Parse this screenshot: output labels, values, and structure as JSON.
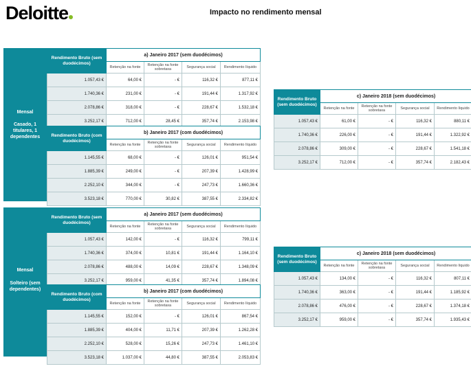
{
  "logo": "Deloitte",
  "page_title": "Impacto no rendimento mensal",
  "col_headers": [
    "Retenção na fonte",
    "Retenção na fonte sobretaxa",
    "Segurança social",
    "Rendimento líquido"
  ],
  "sections": [
    {
      "side_label": "Mensal",
      "side_sublabel": "Casado, 1 titulares, 1 dependentes",
      "tables": [
        {
          "rb_label": "Rendimento Bruto (sem duodécimos)",
          "period": "a) Janeiro 2017 (sem duodécimos)",
          "rows": [
            [
              "1.057,43 €",
              "64,00 €",
              "-   €",
              "116,32 €",
              "877,11 €"
            ],
            [
              "1.740,36 €",
              "231,00 €",
              "-   €",
              "191,44 €",
              "1.317,92 €"
            ],
            [
              "2.078,86 €",
              "318,00 €",
              "-   €",
              "228,67 €",
              "1.532,18 €"
            ],
            [
              "3.252,17 €",
              "712,00 €",
              "28,45 €",
              "357,74 €",
              "2.153,98 €"
            ]
          ]
        },
        {
          "rb_label": "Rendimento Bruto (com duodécimos)",
          "period": "b) Janeiro 2017 (com duodécimos)",
          "rows": [
            [
              "1.145,55 €",
              "68,00 €",
              "-   €",
              "126,01 €",
              "951,54 €"
            ],
            [
              "1.885,39 €",
              "249,00 €",
              "-   €",
              "207,39 €",
              "1.428,99 €"
            ],
            [
              "2.252,10 €",
              "344,00 €",
              "-   €",
              "247,73 €",
              "1.660,36 €"
            ],
            [
              "3.523,18 €",
              "770,00 €",
              "30,82 €",
              "387,55 €",
              "2.334,82 €"
            ]
          ]
        }
      ],
      "side_table": {
        "rb_label": "Rendimento Bruto (sem duodécimos)",
        "period": "c) Janeiro 2018 (sem duodécimos)",
        "rows": [
          [
            "1.057,43 €",
            "61,00 €",
            "-   €",
            "116,32 €",
            "880,11 €"
          ],
          [
            "1.740,36 €",
            "226,00 €",
            "-   €",
            "191,44 €",
            "1.322,92 €"
          ],
          [
            "2.078,86 €",
            "309,00 €",
            "-   €",
            "228,67 €",
            "1.541,18 €"
          ],
          [
            "3.252,17 €",
            "712,00 €",
            "-   €",
            "357,74 €",
            "2.182,43 €"
          ]
        ]
      }
    },
    {
      "side_label": "Mensal",
      "side_sublabel": "Solteiro (sem dependentes)",
      "tables": [
        {
          "rb_label": "Rendimento Bruto (sem duodécimos)",
          "period": "a) Janeiro 2017 (sem duodécimos)",
          "rows": [
            [
              "1.057,43 €",
              "142,00 €",
              "-   €",
              "116,32 €",
              "799,11 €"
            ],
            [
              "1.740,36 €",
              "374,00 €",
              "10,81 €",
              "191,44 €",
              "1.164,10 €"
            ],
            [
              "2.078,86 €",
              "488,00 €",
              "14,09 €",
              "228,67 €",
              "1.348,09 €"
            ],
            [
              "3.252,17 €",
              "959,00 €",
              "41,35 €",
              "357,74 €",
              "1.894,08 €"
            ]
          ]
        },
        {
          "rb_label": "Rendimento Bruto (com duodécimos)",
          "period": "b) Janeiro 2017 (com duodécimos)",
          "rows": [
            [
              "1.145,55 €",
              "152,00 €",
              "-   €",
              "126,01 €",
              "867,54 €"
            ],
            [
              "1.885,39 €",
              "404,00 €",
              "11,71 €",
              "207,39 €",
              "1.262,28 €"
            ],
            [
              "2.252,10 €",
              "528,00 €",
              "15,26 €",
              "247,73 €",
              "1.461,10 €"
            ],
            [
              "3.523,18 €",
              "1.037,00 €",
              "44,80 €",
              "387,55 €",
              "2.053,83 €"
            ]
          ]
        }
      ],
      "side_table": {
        "rb_label": "Rendimento Bruto (sem duodécimos)",
        "period": "c) Janeiro 2018 (sem duodécimos)",
        "rows": [
          [
            "1.057,43 €",
            "134,00 €",
            "-   €",
            "116,32 €",
            "807,11 €"
          ],
          [
            "1.740,36 €",
            "363,00 €",
            "-   €",
            "191,44 €",
            "1.185,92 €"
          ],
          [
            "2.078,86 €",
            "476,00 €",
            "-   €",
            "228,67 €",
            "1.374,18 €"
          ],
          [
            "3.252,17 €",
            "959,00 €",
            "-   €",
            "357,74 €",
            "1.935,43 €"
          ]
        ]
      }
    }
  ]
}
